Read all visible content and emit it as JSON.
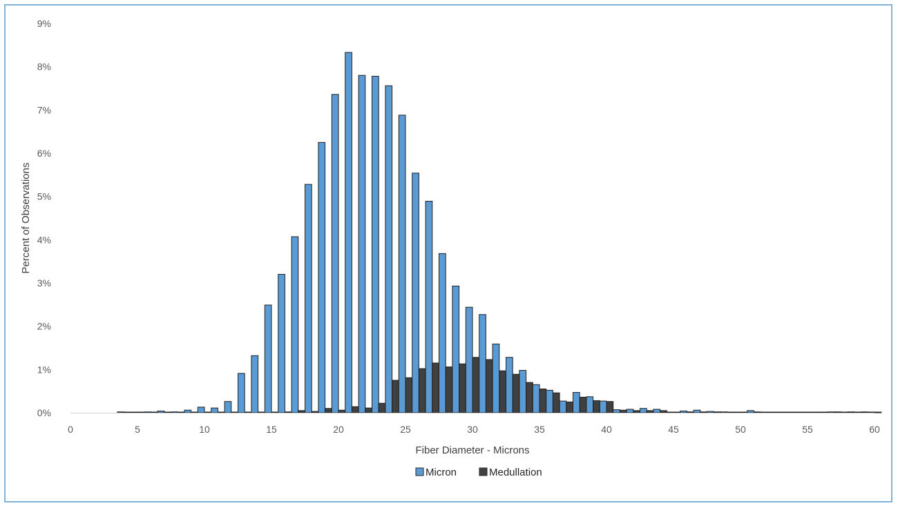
{
  "chart_data": {
    "type": "bar",
    "title": "",
    "xlabel": "Fiber Diameter - Microns",
    "ylabel": "Percent of Observations",
    "xlim": [
      0,
      60
    ],
    "ylim": [
      0,
      9
    ],
    "x_ticks": [
      "0",
      "5",
      "10",
      "15",
      "20",
      "25",
      "30",
      "35",
      "40",
      "45",
      "50",
      "55",
      "60"
    ],
    "y_ticks": [
      "0%",
      "1%",
      "2%",
      "3%",
      "4%",
      "5%",
      "6%",
      "7%",
      "8%",
      "9%"
    ],
    "grid": false,
    "legend_position": "bottom",
    "x": [
      4,
      5,
      6,
      7,
      8,
      9,
      10,
      11,
      12,
      13,
      14,
      15,
      16,
      17,
      18,
      19,
      20,
      21,
      22,
      23,
      24,
      25,
      26,
      27,
      28,
      29,
      30,
      31,
      32,
      33,
      34,
      35,
      36,
      37,
      38,
      39,
      40,
      41,
      42,
      43,
      44,
      45,
      46,
      47,
      48,
      49,
      50,
      51,
      52,
      53,
      54,
      55,
      56,
      57,
      58,
      59,
      60
    ],
    "series": [
      {
        "name": "Micron",
        "color": "#5b9bd5",
        "values": [
          0.02,
          0,
          0.02,
          0.04,
          0.02,
          0.06,
          0.13,
          0.11,
          0.26,
          0.91,
          1.32,
          2.49,
          3.2,
          4.07,
          5.28,
          6.25,
          7.36,
          8.33,
          7.8,
          7.78,
          7.56,
          6.88,
          5.54,
          4.89,
          3.68,
          2.93,
          2.44,
          2.27,
          1.59,
          1.28,
          0.98,
          0.65,
          0.52,
          0.27,
          0.47,
          0.37,
          0.27,
          0.07,
          0.08,
          0.1,
          0.08,
          0,
          0.04,
          0.06,
          0.03,
          0.02,
          0,
          0.05,
          0,
          0,
          0,
          0,
          0,
          0.02,
          0,
          0,
          0
        ]
      },
      {
        "name": "Medullation",
        "color": "#404040",
        "values": [
          0,
          0,
          0,
          0,
          0,
          0,
          0,
          0,
          0,
          0,
          0,
          0,
          0.02,
          0.05,
          0.03,
          0.1,
          0.06,
          0.14,
          0.11,
          0.22,
          0.75,
          0.81,
          1.02,
          1.15,
          1.06,
          1.13,
          1.28,
          1.23,
          0.97,
          0.89,
          0.7,
          0.55,
          0.46,
          0.25,
          0.36,
          0.28,
          0.26,
          0.06,
          0.05,
          0.05,
          0.05,
          0.01,
          0.02,
          0.02,
          0.02,
          0,
          0,
          0.02,
          0,
          0,
          0,
          0,
          0,
          0.02,
          0.02,
          0.02,
          0
        ]
      }
    ]
  }
}
